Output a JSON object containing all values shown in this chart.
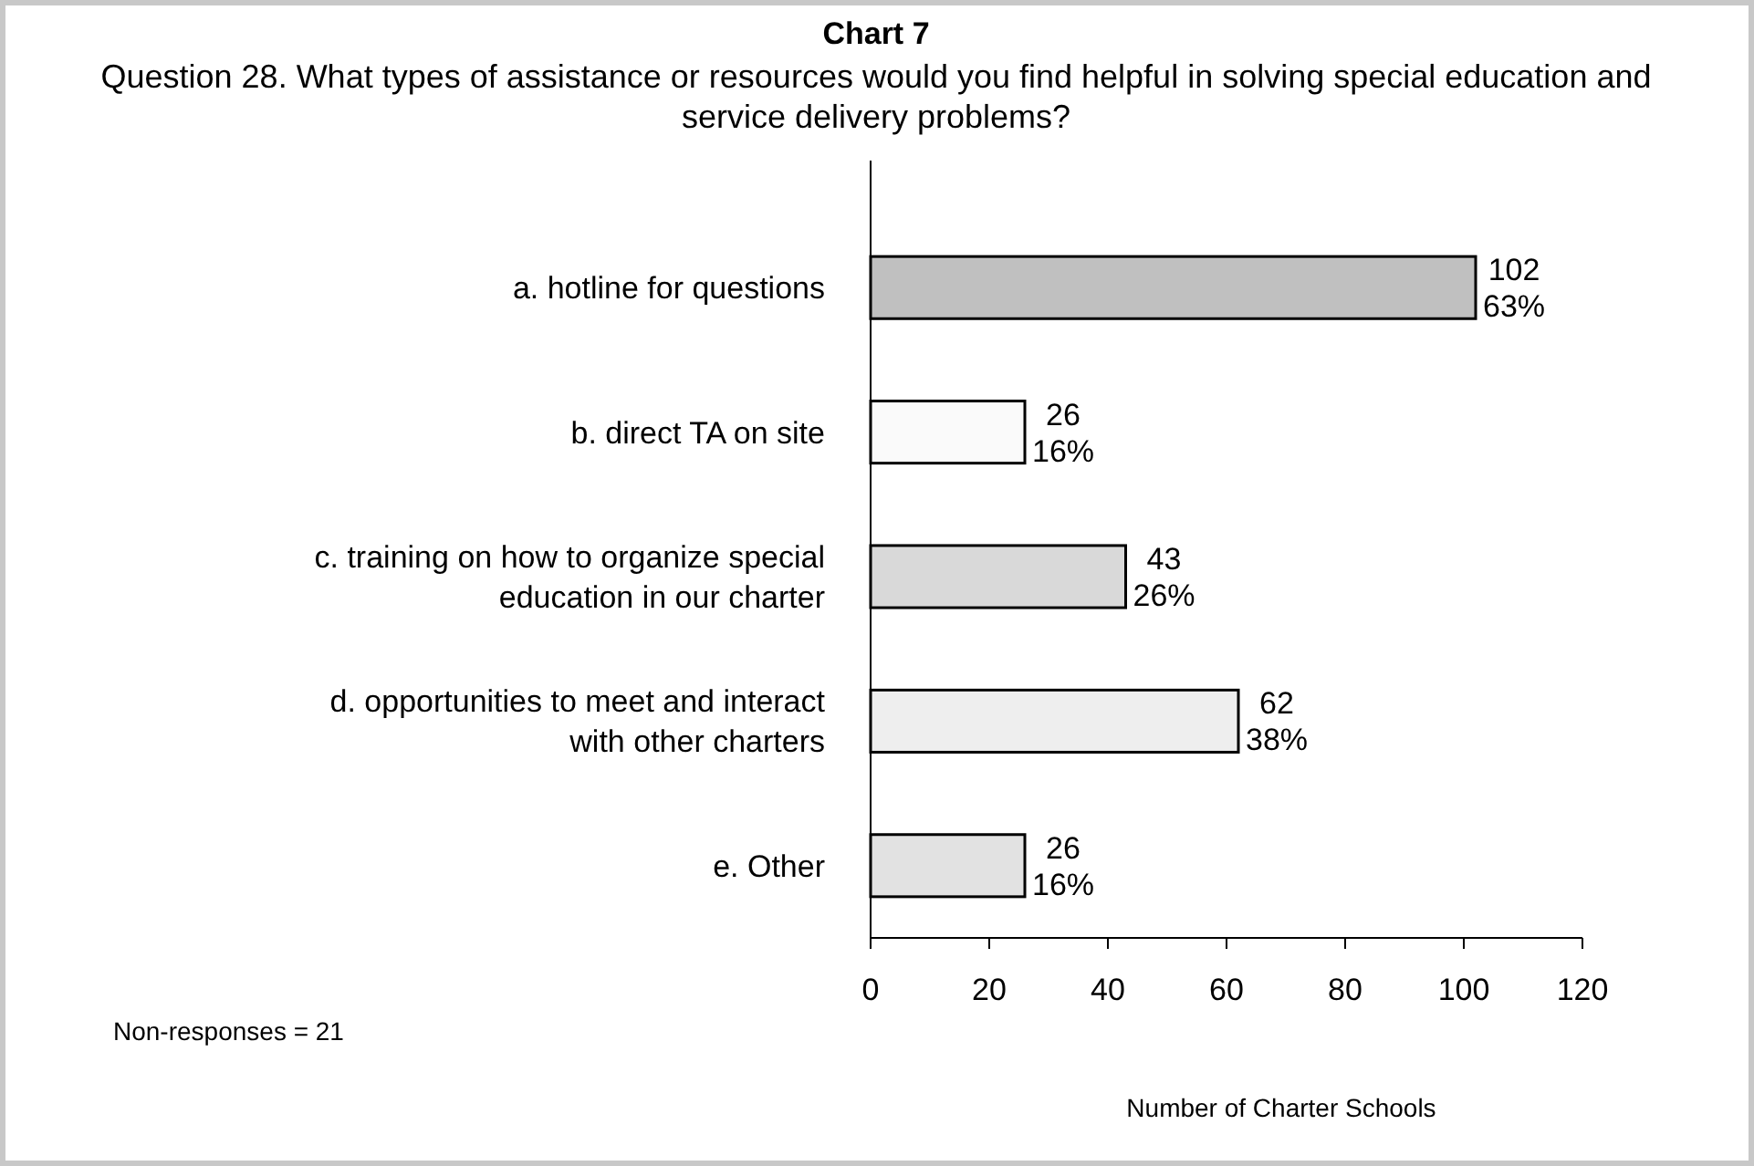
{
  "chart_data": {
    "type": "bar",
    "orientation": "horizontal",
    "title": "Chart 7",
    "subtitle": "Question 28. What types of assistance or resources would you find helpful in solving special education and service delivery problems?",
    "xlabel": "Number of Charter Schools",
    "categories": [
      "a. hotline for questions",
      "b. direct TA on site",
      "c. training on how to organize special education in our charter",
      "d. opportunities to meet and interact with other charters",
      "e. Other"
    ],
    "values": [
      102,
      26,
      43,
      62,
      26
    ],
    "colors": [
      "#c0c0c0",
      "#fafafa",
      "#d9d9d9",
      "#eeeeee",
      "#e2e2e2"
    ],
    "value_labels": [
      "102\n63%",
      "26\n16%",
      "43\n26%",
      "62\n38%",
      "26\n16%"
    ],
    "xlim": [
      0,
      120
    ],
    "xticks": [
      0,
      20,
      40,
      60,
      80,
      100,
      120
    ],
    "grid": false,
    "annotations": [
      "Non-responses = 21"
    ]
  }
}
